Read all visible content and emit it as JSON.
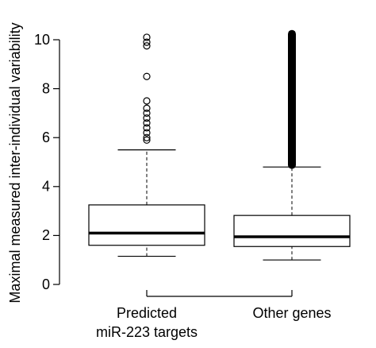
{
  "chart_data": {
    "type": "box",
    "y_label": "Maximal measured inter-individual variability",
    "categories": [
      [
        "Predicted",
        "miR-223 targets"
      ],
      [
        "Other genes"
      ]
    ],
    "boxes": [
      {
        "min": 1.15,
        "q1": 1.6,
        "median": 2.1,
        "q3": 3.25,
        "max": 5.5,
        "outliers": [
          10.1,
          9.9,
          9.75,
          8.5,
          7.5,
          7.2,
          7.0,
          6.8,
          6.6,
          6.4,
          6.2,
          6.0,
          5.9
        ]
      },
      {
        "min": 1.0,
        "q1": 1.55,
        "median": 1.95,
        "q3": 2.82,
        "max": 4.8,
        "outlier_range": [
          4.85,
          10.4
        ]
      }
    ],
    "ylim": [
      0,
      10.4
    ],
    "yticks": [
      0,
      2,
      4,
      6,
      8,
      10
    ]
  }
}
